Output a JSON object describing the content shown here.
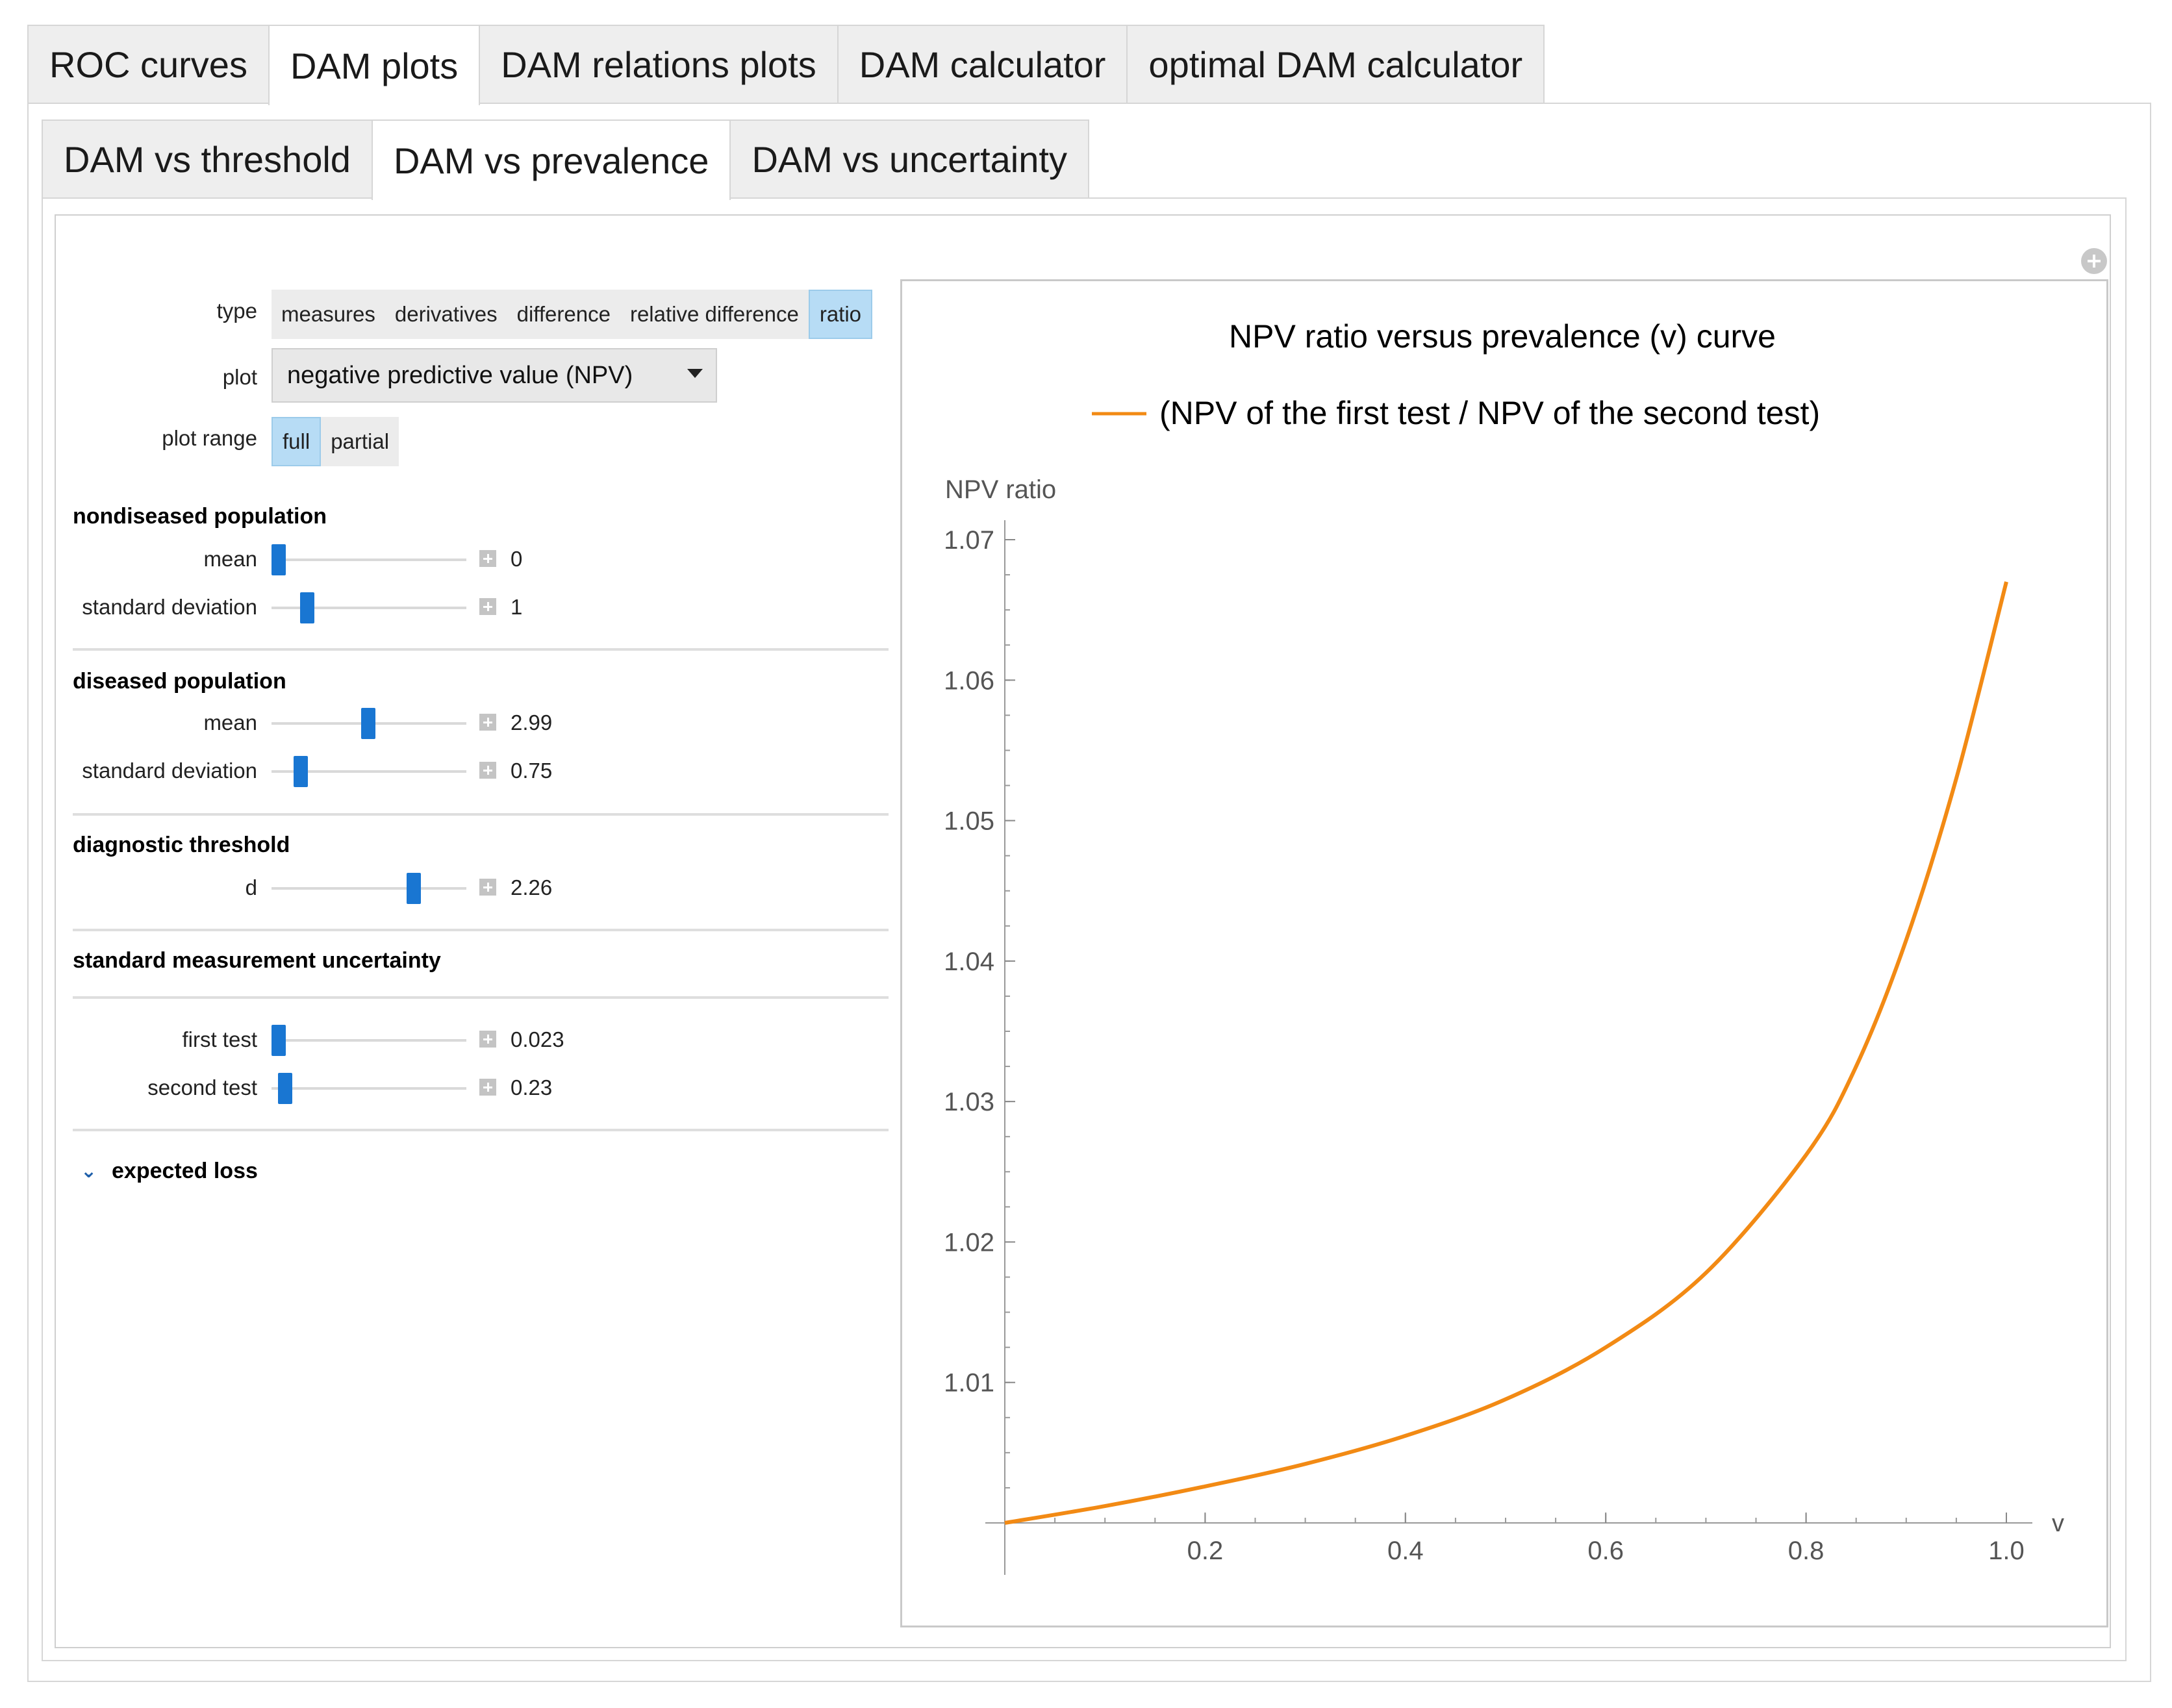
{
  "top_tabs": [
    "ROC curves",
    "DAM plots",
    "DAM relations plots",
    "DAM calculator",
    "optimal DAM calculator"
  ],
  "sub_tabs": [
    "DAM vs threshold",
    "DAM vs prevalence",
    "DAM vs uncertainty"
  ],
  "controls": {
    "type_label": "type",
    "type_options": [
      "measures",
      "derivatives",
      "difference",
      "relative difference",
      "ratio"
    ],
    "type_selected": "ratio",
    "plot_label": "plot",
    "plot_value": "negative predictive value (NPV)",
    "plot_range_label": "plot range",
    "plot_range_options": [
      "full",
      "partial"
    ],
    "plot_range_selected": "full"
  },
  "nondiseased": {
    "title": "nondiseased population",
    "mean_label": "mean",
    "mean_value": "0",
    "sd_label": "standard deviation",
    "sd_value": "1"
  },
  "diseased": {
    "title": "diseased population",
    "mean_label": "mean",
    "mean_value": "2.99",
    "sd_label": "standard deviation",
    "sd_value": "0.75"
  },
  "threshold": {
    "title": "diagnostic threshold",
    "d_label": "d",
    "d_value": "2.26"
  },
  "uncertainty": {
    "title": "standard measurement uncertainty",
    "first_label": "first test",
    "first_value": "0.023",
    "second_label": "second test",
    "second_value": "0.23"
  },
  "expected_loss": {
    "label": "expected loss"
  },
  "colors": {
    "accent": "#1976d2",
    "selected_bg": "#b7dcf5",
    "curve": "#f28a14"
  },
  "chart_data": {
    "type": "line",
    "title": "NPV ratio versus prevalence (v) curve",
    "legend": "(NPV of the first test / NPV of the second test)",
    "ylabel": "NPV ratio",
    "xlabel": "v",
    "xlim": [
      0,
      1.0
    ],
    "ylim": [
      1.0,
      1.07
    ],
    "xticks": [
      "0.2",
      "0.4",
      "0.6",
      "0.8",
      "1.0"
    ],
    "yticks": [
      "1.01",
      "1.02",
      "1.03",
      "1.04",
      "1.05",
      "1.06",
      "1.07"
    ],
    "series": [
      {
        "x": [
          0.0,
          0.1,
          0.2,
          0.3,
          0.4,
          0.5,
          0.6,
          0.7,
          0.8,
          0.85,
          0.9,
          0.95,
          1.0
        ],
        "y": [
          1.0,
          1.0012,
          1.0026,
          1.0042,
          1.0062,
          1.0088,
          1.0125,
          1.0178,
          1.0262,
          1.0325,
          1.0415,
          1.053,
          1.067
        ]
      }
    ]
  }
}
